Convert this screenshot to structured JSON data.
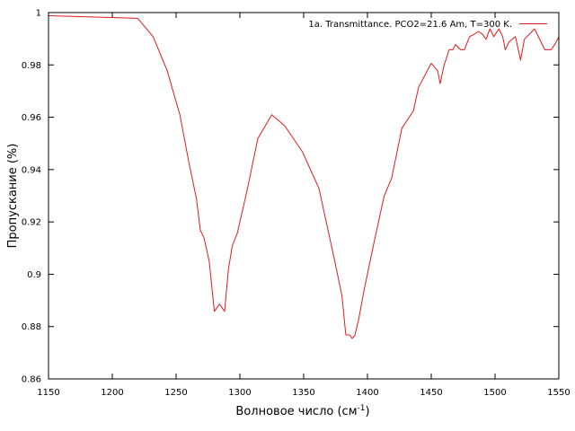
{
  "chart_data": {
    "type": "line",
    "title": "",
    "xlabel": "Волновое число (см",
    "xlabel_sup": "-1",
    "xlabel_close": ")",
    "ylabel": "Пропускание (%)",
    "xlim": [
      1150,
      1550
    ],
    "ylim": [
      0.86,
      1.0
    ],
    "xticks": [
      1150,
      1200,
      1250,
      1300,
      1350,
      1400,
      1450,
      1500,
      1550
    ],
    "yticks": [
      0.86,
      0.88,
      0.9,
      0.92,
      0.94,
      0.96,
      0.98,
      1.0
    ],
    "xtick_labels": [
      "1150",
      "1200",
      "1250",
      "1300",
      "1350",
      "1400",
      "1450",
      "1500",
      "1550"
    ],
    "ytick_labels": [
      "0.86",
      "0.88",
      "0.9",
      "0.92",
      "0.94",
      "0.96",
      "0.98",
      "1"
    ],
    "grid": false,
    "legend_position": "top-right",
    "series": [
      {
        "name": "1a. Transmittance. PCO2=21.6 Am, T=300 K.",
        "color": "#e41a1c",
        "x": [
          1150,
          1220,
          1232,
          1243,
          1253,
          1260,
          1266,
          1269,
          1272,
          1276,
          1280,
          1284,
          1288,
          1291,
          1294,
          1298,
          1306,
          1314,
          1325,
          1335,
          1349,
          1362,
          1374,
          1380,
          1383,
          1386,
          1388,
          1390,
          1393,
          1397,
          1405,
          1413,
          1419,
          1427,
          1436,
          1440,
          1450,
          1455,
          1457,
          1460,
          1464,
          1467,
          1469,
          1473,
          1476,
          1480,
          1484,
          1487,
          1490,
          1493,
          1496,
          1499,
          1503,
          1506,
          1508,
          1511,
          1516,
          1520,
          1523,
          1531,
          1539,
          1544,
          1548,
          1550
        ],
        "y": [
          0.9988,
          0.9978,
          0.9908,
          0.9778,
          0.9608,
          0.9428,
          0.9288,
          0.9168,
          0.9138,
          0.9048,
          0.8858,
          0.8886,
          0.8858,
          0.9018,
          0.9108,
          0.9158,
          0.9328,
          0.9518,
          0.961,
          0.9568,
          0.9468,
          0.9328,
          0.9058,
          0.8918,
          0.8768,
          0.8768,
          0.8755,
          0.8765,
          0.8825,
          0.893,
          0.9118,
          0.9298,
          0.9368,
          0.9558,
          0.9624,
          0.9714,
          0.9806,
          0.9778,
          0.9728,
          0.9798,
          0.9858,
          0.9858,
          0.9878,
          0.9858,
          0.9858,
          0.9908,
          0.9918,
          0.9928,
          0.9918,
          0.9898,
          0.9938,
          0.9908,
          0.9938,
          0.9908,
          0.9858,
          0.9888,
          0.9908,
          0.9818,
          0.9898,
          0.9938,
          0.9858,
          0.9858,
          0.9888,
          0.9908
        ]
      }
    ]
  }
}
